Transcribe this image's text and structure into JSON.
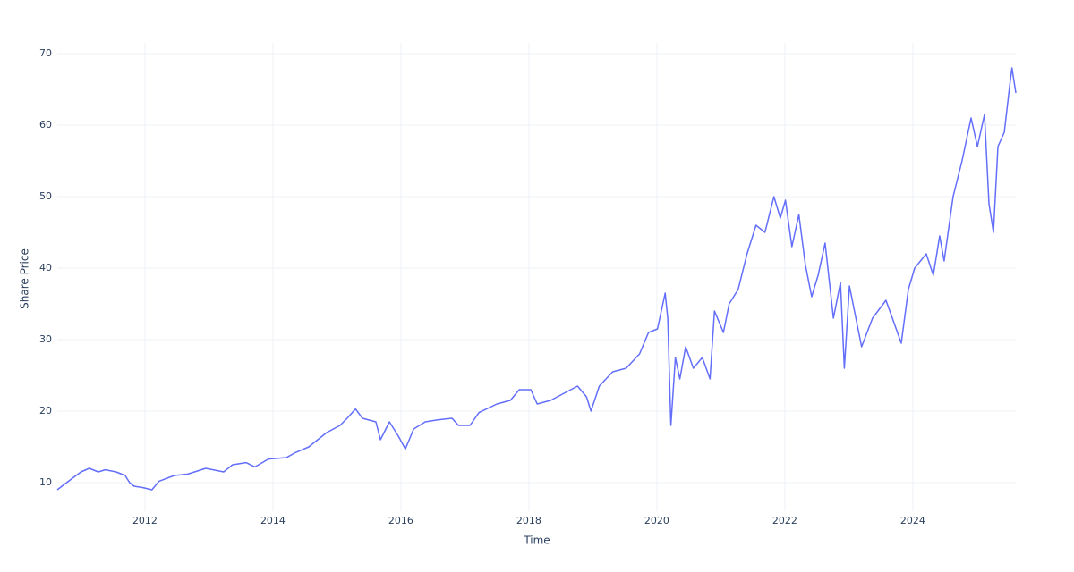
{
  "chart_data": {
    "type": "line",
    "x_label": "Time",
    "y_label": "Share Price",
    "color": "#636efa",
    "x": [
      2010.63,
      2010.85,
      2011.0,
      2011.13,
      2011.27,
      2011.38,
      2011.55,
      2011.69,
      2011.76,
      2011.83,
      2011.97,
      2012.11,
      2012.22,
      2012.46,
      2012.67,
      2012.95,
      2013.23,
      2013.37,
      2013.58,
      2013.72,
      2013.93,
      2014.21,
      2014.35,
      2014.56,
      2014.7,
      2014.84,
      2015.05,
      2015.16,
      2015.29,
      2015.4,
      2015.61,
      2015.68,
      2015.82,
      2015.96,
      2016.07,
      2016.2,
      2016.38,
      2016.59,
      2016.8,
      2016.9,
      2017.08,
      2017.22,
      2017.5,
      2017.71,
      2017.85,
      2018.03,
      2018.13,
      2018.34,
      2018.55,
      2018.76,
      2018.9,
      2018.97,
      2019.1,
      2019.31,
      2019.52,
      2019.73,
      2019.87,
      2020.01,
      2020.13,
      2020.17,
      2020.22,
      2020.29,
      2020.36,
      2020.45,
      2020.57,
      2020.71,
      2020.83,
      2020.9,
      2021.04,
      2021.13,
      2021.27,
      2021.41,
      2021.55,
      2021.69,
      2021.83,
      2021.93,
      2022.01,
      2022.11,
      2022.22,
      2022.32,
      2022.42,
      2022.52,
      2022.63,
      2022.76,
      2022.87,
      2022.93,
      2023.01,
      2023.11,
      2023.2,
      2023.37,
      2023.58,
      2023.72,
      2023.82,
      2023.93,
      2024.03,
      2024.21,
      2024.32,
      2024.42,
      2024.49,
      2024.63,
      2024.77,
      2024.91,
      2025.01,
      2025.12,
      2025.19,
      2025.26,
      2025.33,
      2025.43,
      2025.52,
      2025.55,
      2025.61
    ],
    "values": [
      9.0,
      10.5,
      11.5,
      12.0,
      11.5,
      11.8,
      11.5,
      11.0,
      10.0,
      9.5,
      9.3,
      9.0,
      10.2,
      11.0,
      11.2,
      12.0,
      11.5,
      12.5,
      12.8,
      12.2,
      13.3,
      13.5,
      14.2,
      15.0,
      16.0,
      17.0,
      18.0,
      19.0,
      20.3,
      19.0,
      18.5,
      16.0,
      18.5,
      16.5,
      14.7,
      17.5,
      18.5,
      18.8,
      19.0,
      18.0,
      18.0,
      19.8,
      21.0,
      21.5,
      23.0,
      23.0,
      21.0,
      21.5,
      22.5,
      23.5,
      22.0,
      20.0,
      23.5,
      25.5,
      26.0,
      28.0,
      31.0,
      31.5,
      36.5,
      33.0,
      18.0,
      27.5,
      24.5,
      29.0,
      26.0,
      27.5,
      24.5,
      34.0,
      31.0,
      35.0,
      37.0,
      42.0,
      46.0,
      45.0,
      50.0,
      47.0,
      49.5,
      43.0,
      47.5,
      40.5,
      36.0,
      39.0,
      43.5,
      33.0,
      38.0,
      26.0,
      37.5,
      33.0,
      29.0,
      33.0,
      35.5,
      32.0,
      29.5,
      37.0,
      40.0,
      42.0,
      39.0,
      44.5,
      41.0,
      50.0,
      55.0,
      61.0,
      57.0,
      61.5,
      49.0,
      45.0,
      57.0,
      59.0,
      66.0,
      68.0,
      64.5
    ],
    "xlim": [
      2010.63,
      2025.61
    ],
    "xticks": [
      2012,
      2014,
      2016,
      2018,
      2020,
      2022,
      2024
    ],
    "ylim": [
      6,
      71.5
    ],
    "yticks": [
      10,
      20,
      30,
      40,
      50,
      60,
      70
    ],
    "grid": true
  }
}
